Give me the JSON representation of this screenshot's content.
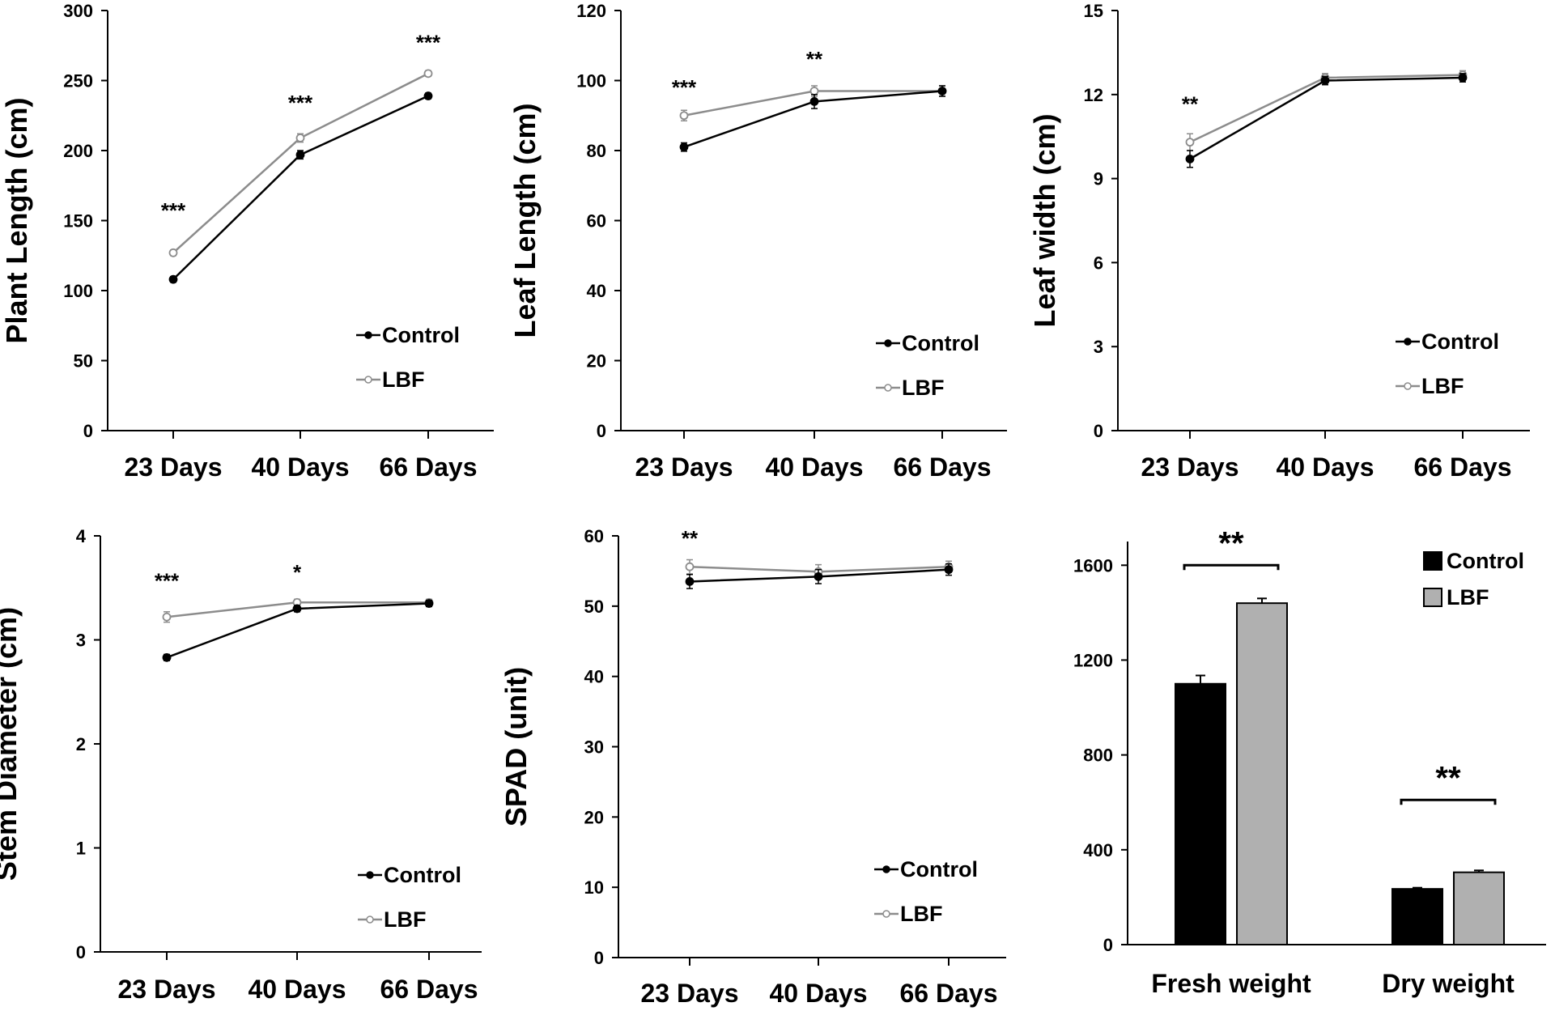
{
  "colors": {
    "control": "#000000",
    "lbf": "#8c8c8c",
    "lbf_marker_fill": "#ffffff",
    "bar_control": "#000000",
    "bar_lbf": "#b0b0b0",
    "axis": "#000000"
  },
  "chart_data": [
    {
      "id": "plant-length",
      "type": "line",
      "ylabel": "Plant Length (cm)",
      "categories": [
        "23  Days",
        "40  Days",
        "66  Days"
      ],
      "ylim": [
        0,
        300
      ],
      "yticks": [
        0,
        50,
        100,
        150,
        200,
        250,
        300
      ],
      "legend": "bottom-right",
      "series": [
        {
          "name": "Control",
          "values": [
            108,
            197,
            239
          ],
          "errors": [
            2,
            3,
            2
          ]
        },
        {
          "name": "LBF",
          "values": [
            127,
            209,
            255
          ],
          "errors": [
            2,
            3,
            2
          ]
        }
      ],
      "significance": [
        "***",
        "***",
        "***"
      ],
      "sig_values": [
        152,
        229,
        272
      ]
    },
    {
      "id": "leaf-length",
      "type": "line",
      "ylabel": "Leaf Length (cm)",
      "categories": [
        "23  Days",
        "40  Days",
        "66  Days"
      ],
      "ylim": [
        0,
        120
      ],
      "yticks": [
        0,
        20,
        40,
        60,
        80,
        100,
        120
      ],
      "legend": "bottom-right",
      "series": [
        {
          "name": "Control",
          "values": [
            81,
            94,
            97
          ],
          "errors": [
            1.2,
            2,
            1.5
          ]
        },
        {
          "name": "LBF",
          "values": [
            90,
            97,
            97
          ],
          "errors": [
            1.5,
            1.5,
            1.5
          ]
        }
      ],
      "significance": [
        "***",
        "**",
        ""
      ],
      "sig_values": [
        96,
        104,
        0
      ]
    },
    {
      "id": "leaf-width",
      "type": "line",
      "ylabel": "Leaf width (cm)",
      "categories": [
        "23  Days",
        "40  Days",
        "66  Days"
      ],
      "ylim": [
        0,
        15
      ],
      "yticks": [
        0,
        3,
        6,
        9,
        12,
        15
      ],
      "legend": "bottom-right",
      "series": [
        {
          "name": "Control",
          "values": [
            9.7,
            12.5,
            12.6
          ],
          "errors": [
            0.3,
            0.15,
            0.15
          ]
        },
        {
          "name": "LBF",
          "values": [
            10.3,
            12.6,
            12.7
          ],
          "errors": [
            0.3,
            0.15,
            0.15
          ]
        }
      ],
      "significance": [
        "**",
        "",
        ""
      ],
      "sig_values": [
        11.4,
        0,
        0
      ]
    },
    {
      "id": "stem-diameter",
      "type": "line",
      "ylabel": "Stem Diameter (cm)",
      "categories": [
        "23  Days",
        "40  Days",
        "66  Days"
      ],
      "ylim": [
        0,
        4
      ],
      "yticks": [
        0,
        1,
        2,
        3,
        4
      ],
      "legend": "bottom-right",
      "series": [
        {
          "name": "Control",
          "values": [
            2.83,
            3.3,
            3.35
          ],
          "errors": [
            0.03,
            0.03,
            0.03
          ]
        },
        {
          "name": "LBF",
          "values": [
            3.22,
            3.36,
            3.36
          ],
          "errors": [
            0.05,
            0.03,
            0.03
          ]
        }
      ],
      "significance": [
        "***",
        "*",
        ""
      ],
      "sig_values": [
        3.5,
        3.58,
        0
      ]
    },
    {
      "id": "spad",
      "type": "line",
      "ylabel": "SPAD (unit)",
      "categories": [
        "23  Days",
        "40  Days",
        "66  Days"
      ],
      "ylim": [
        0,
        60
      ],
      "yticks": [
        0,
        10,
        20,
        30,
        40,
        50,
        60
      ],
      "legend": "bottom-right",
      "series": [
        {
          "name": "Control",
          "values": [
            53.5,
            54.2,
            55.2
          ],
          "errors": [
            1,
            1,
            0.8
          ]
        },
        {
          "name": "LBF",
          "values": [
            55.6,
            54.9,
            55.6
          ],
          "errors": [
            1,
            1,
            0.8
          ]
        }
      ],
      "significance": [
        "**",
        "",
        ""
      ],
      "sig_values": [
        58.6,
        0,
        0
      ]
    },
    {
      "id": "weight",
      "type": "bar",
      "ylabel": "",
      "categories": [
        "Fresh weight",
        "Dry weight"
      ],
      "ylim": [
        0,
        1700
      ],
      "yticks": [
        0,
        400,
        800,
        1200,
        1600
      ],
      "legend": "top-right",
      "series": [
        {
          "name": "Control",
          "values": [
            1100,
            235
          ],
          "errors": [
            35,
            5
          ]
        },
        {
          "name": "LBF",
          "values": [
            1440,
            305
          ],
          "errors": [
            20,
            8
          ]
        }
      ],
      "significance": [
        "**",
        "**"
      ],
      "sig_values": [
        1600,
        610
      ]
    }
  ]
}
